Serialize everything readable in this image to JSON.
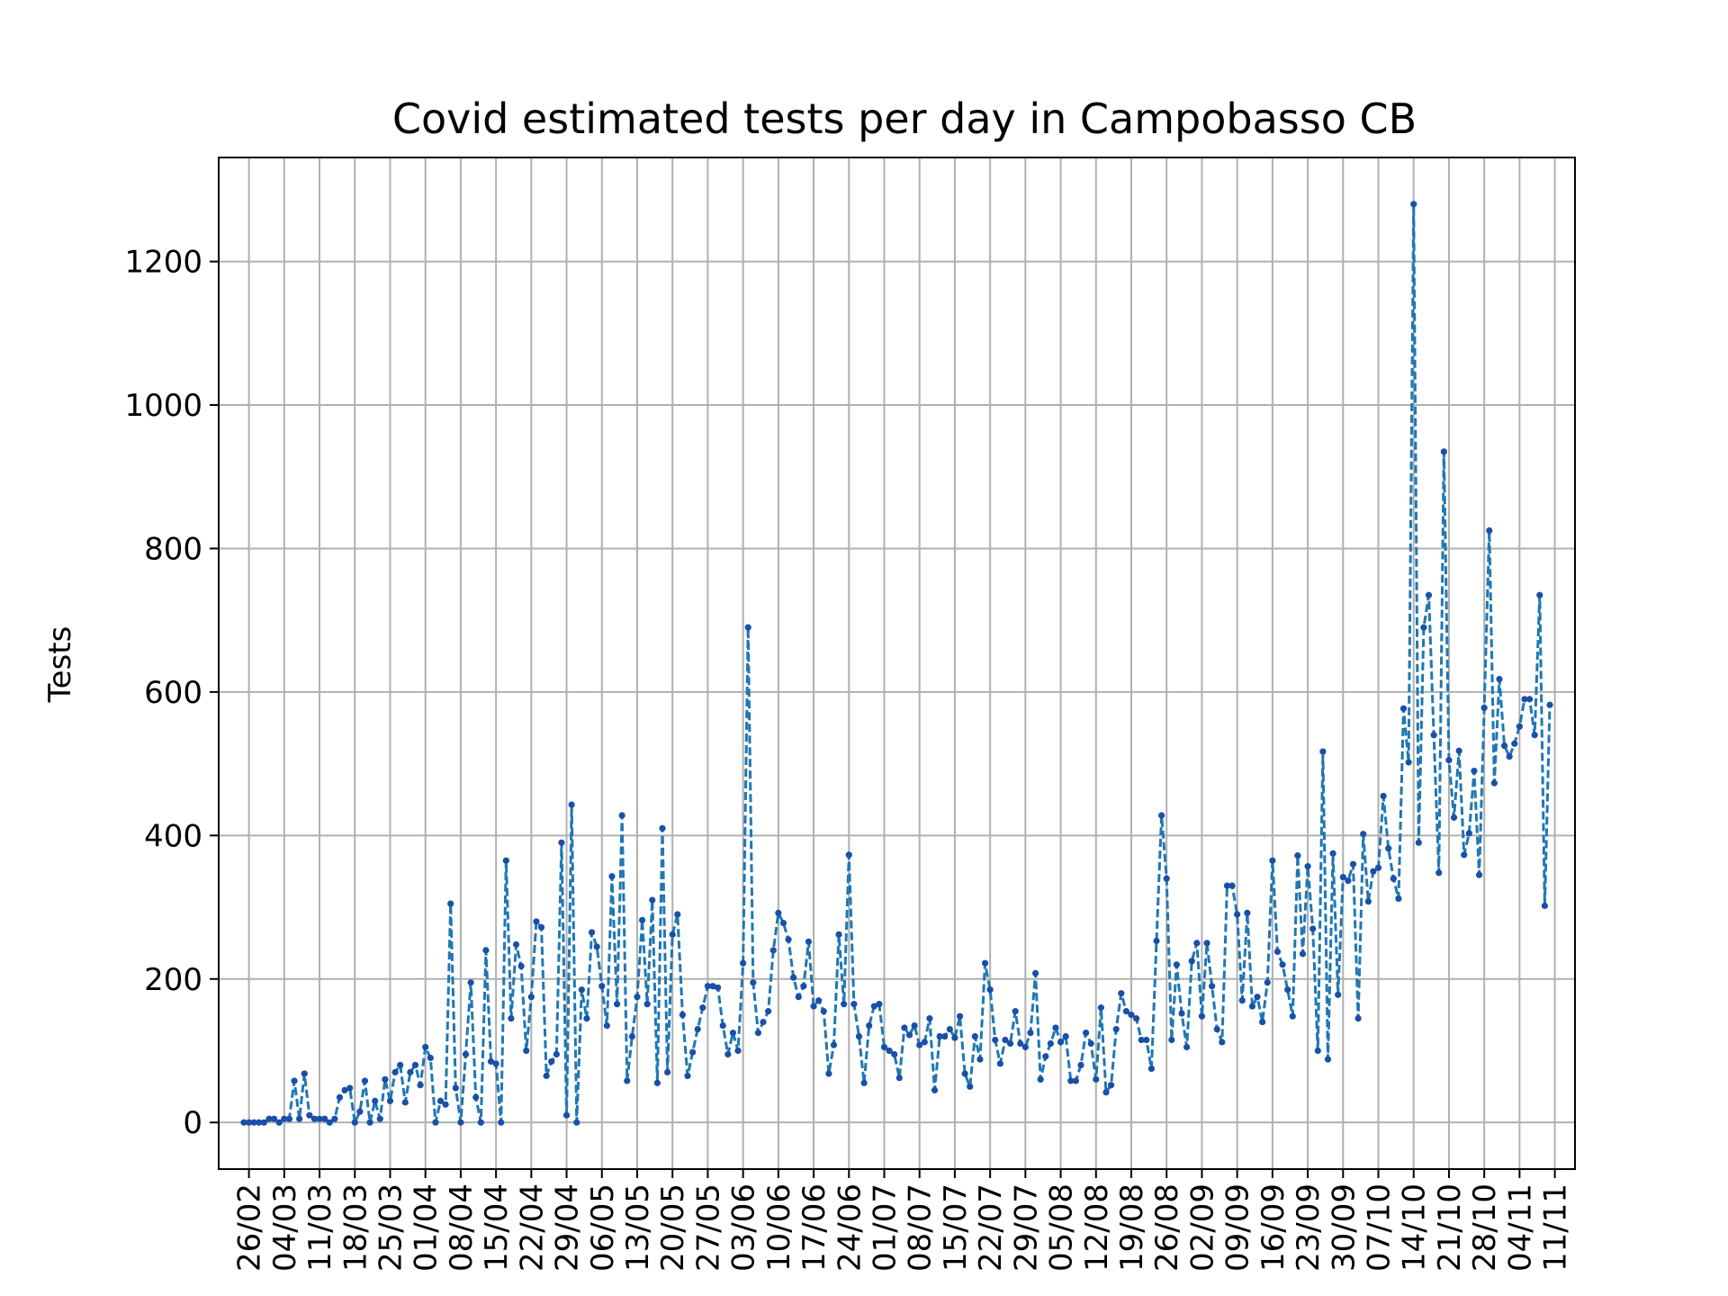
{
  "chart_data": {
    "type": "line",
    "title": "Covid estimated tests per day in Campobasso CB",
    "xlabel": "",
    "ylabel": "Tests",
    "ylim": [
      -65,
      1345
    ],
    "yticks": [
      0,
      200,
      400,
      600,
      800,
      1000,
      1200
    ],
    "grid": true,
    "style": {
      "line_color": "#1f77b4",
      "line_style": "dashed",
      "marker": "dot",
      "grid_color": "#b0b0b0"
    },
    "x_tick_labels": [
      "26/02",
      "04/03",
      "11/03",
      "18/03",
      "25/03",
      "01/04",
      "08/04",
      "15/04",
      "22/04",
      "29/04",
      "06/05",
      "13/05",
      "20/05",
      "27/05",
      "03/06",
      "10/06",
      "17/06",
      "24/06",
      "01/07",
      "08/07",
      "15/07",
      "22/07",
      "29/07",
      "05/08",
      "12/08",
      "19/08",
      "26/08",
      "02/09",
      "09/09",
      "16/09",
      "23/09",
      "30/09",
      "07/10",
      "14/10",
      "21/10",
      "28/10",
      "04/11",
      "11/11"
    ],
    "x_start": "2020-02-25",
    "series": [
      {
        "values": [
          0,
          0,
          0,
          0,
          0,
          5,
          5,
          0,
          5,
          5,
          58,
          5,
          68,
          10,
          5,
          5,
          5,
          0,
          5,
          35,
          45,
          48,
          0,
          15,
          58,
          0,
          30,
          5,
          60,
          30,
          70,
          80,
          28,
          70,
          80,
          52,
          105,
          90,
          0,
          30,
          25,
          305,
          48,
          0,
          95,
          195,
          35,
          0,
          240,
          85,
          82,
          0,
          365,
          145,
          248,
          218,
          100,
          175,
          280,
          272,
          65,
          85,
          95,
          390,
          10,
          443,
          0,
          185,
          145,
          265,
          245,
          190,
          135,
          343,
          165,
          428,
          58,
          120,
          175,
          282,
          165,
          310,
          55,
          410,
          70,
          262,
          290,
          150,
          65,
          98,
          130,
          160,
          190,
          190,
          188,
          135,
          95,
          125,
          100,
          222,
          690,
          195,
          125,
          140,
          155,
          240,
          292,
          278,
          255,
          202,
          175,
          190,
          252,
          162,
          170,
          155,
          68,
          108,
          262,
          165,
          373,
          165,
          120,
          55,
          135,
          162,
          165,
          105,
          100,
          95,
          62,
          132,
          122,
          135,
          108,
          112,
          145,
          45,
          120,
          120,
          130,
          118,
          148,
          68,
          50,
          120,
          88,
          222,
          185,
          115,
          82,
          115,
          110,
          155,
          110,
          105,
          125,
          208,
          60,
          92,
          110,
          132,
          112,
          120,
          58,
          58,
          80,
          125,
          110,
          60,
          160,
          42,
          52,
          130,
          180,
          155,
          150,
          145,
          115,
          115,
          75,
          253,
          428,
          340,
          115,
          220,
          152,
          105,
          225,
          250,
          148,
          250,
          190,
          130,
          112,
          330,
          330,
          290,
          170,
          292,
          162,
          175,
          140,
          195,
          365,
          238,
          220,
          185,
          148,
          372,
          235,
          357,
          270,
          100,
          517,
          88,
          375,
          178,
          342,
          337,
          360,
          145,
          402,
          308,
          350,
          355,
          455,
          382,
          340,
          312,
          577,
          502,
          1280,
          390,
          690,
          735,
          540,
          348,
          935,
          505,
          425,
          518,
          373,
          403,
          490,
          345,
          578,
          825,
          473,
          618,
          525,
          510,
          528,
          552,
          590,
          590,
          540,
          735,
          302,
          582
        ]
      }
    ]
  }
}
